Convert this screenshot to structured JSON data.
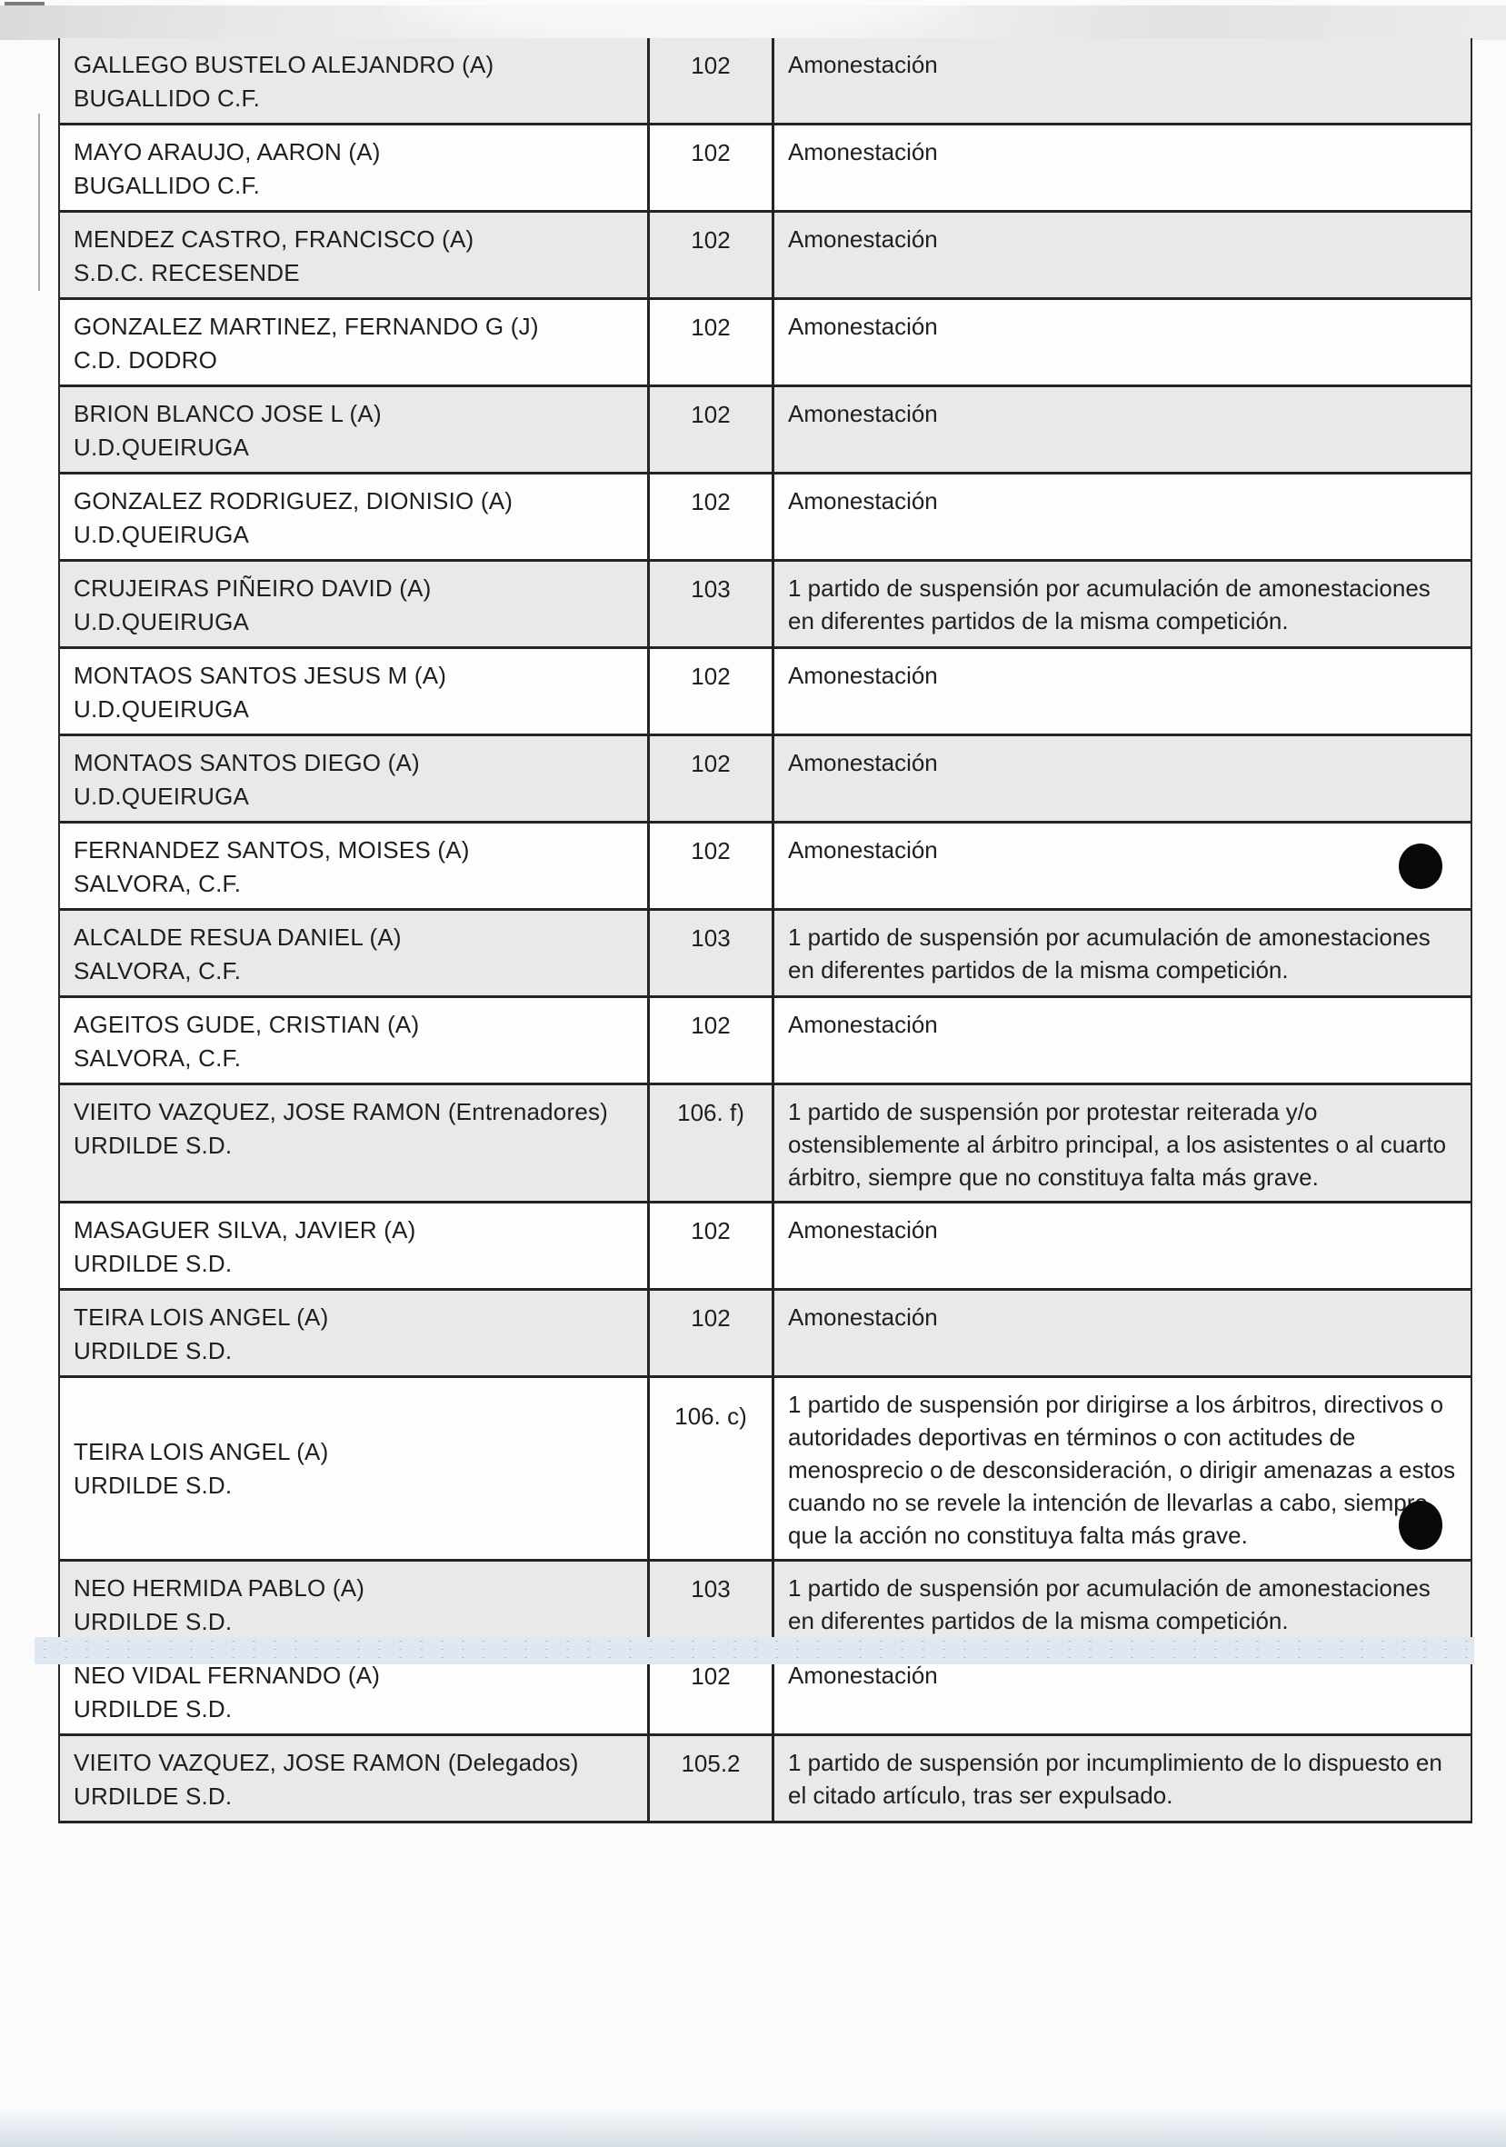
{
  "document": {
    "kind": "scanned sanctions table",
    "language": "es"
  },
  "colors": {
    "row_shaded": "#e9e9e9",
    "row_plain": "#fdfdfd",
    "border": "#242424",
    "text": "#1f1f1f",
    "scan_band_blue": "#dfe8f1",
    "redaction_dot": "#090909"
  },
  "table": {
    "columns": [
      "player_and_club",
      "article",
      "sanction"
    ],
    "rows": [
      {
        "name": "GALLEGO BUSTELO ALEJANDRO (A)",
        "club": "BUGALLIDO C.F.",
        "article": "102",
        "sanction": "Amonestación"
      },
      {
        "name": "MAYO ARAUJO, AARON (A)",
        "club": "BUGALLIDO C.F.",
        "article": "102",
        "sanction": "Amonestación"
      },
      {
        "name": "MENDEZ CASTRO, FRANCISCO (A)",
        "club": "S.D.C. RECESENDE",
        "article": "102",
        "sanction": "Amonestación"
      },
      {
        "name": "GONZALEZ MARTINEZ, FERNANDO G (J)",
        "club": "C.D. DODRO",
        "article": "102",
        "sanction": "Amonestación"
      },
      {
        "name": "BRION BLANCO JOSE L (A)",
        "club": "U.D.QUEIRUGA",
        "article": "102",
        "sanction": "Amonestación"
      },
      {
        "name": "GONZALEZ RODRIGUEZ, DIONISIO (A)",
        "club": "U.D.QUEIRUGA",
        "article": "102",
        "sanction": "Amonestación"
      },
      {
        "name": "CRUJEIRAS PIÑEIRO DAVID (A)",
        "club": "U.D.QUEIRUGA",
        "article": "103",
        "sanction": "1 partido de suspensión por acumulación de amonestaciones en diferentes partidos de la misma competición."
      },
      {
        "name": "MONTAOS SANTOS JESUS M (A)",
        "club": "U.D.QUEIRUGA",
        "article": "102",
        "sanction": "Amonestación"
      },
      {
        "name": "MONTAOS SANTOS DIEGO (A)",
        "club": "U.D.QUEIRUGA",
        "article": "102",
        "sanction": "Amonestación"
      },
      {
        "name": "FERNANDEZ SANTOS, MOISES (A)",
        "club": "SALVORA, C.F.",
        "article": "102",
        "sanction": "Amonestación",
        "redaction_dot": true
      },
      {
        "name": "ALCALDE RESUA DANIEL (A)",
        "club": "SALVORA, C.F.",
        "article": "103",
        "sanction": "1 partido de suspensión por acumulación de amonestaciones en diferentes partidos de la misma competición."
      },
      {
        "name": "AGEITOS GUDE, CRISTIAN (A)",
        "club": "SALVORA, C.F.",
        "article": "102",
        "sanction": "Amonestación"
      },
      {
        "name": "VIEITO VAZQUEZ, JOSE RAMON (Entrenadores)",
        "club": "URDILDE S.D.",
        "article": "106. f)",
        "sanction": "1 partido de suspensión por protestar reiterada y/o ostensiblemente al árbitro principal, a los asistentes o al cuarto árbitro, siempre que no constituya falta más grave."
      },
      {
        "name": "MASAGUER SILVA, JAVIER (A)",
        "club": "URDILDE S.D.",
        "article": "102",
        "sanction": "Amonestación"
      },
      {
        "name": "TEIRA LOIS ANGEL (A)",
        "club": "URDILDE S.D.",
        "article": "102",
        "sanction": "Amonestación"
      },
      {
        "name": "TEIRA LOIS ANGEL (A)",
        "club": "URDILDE S.D.",
        "article": "106. c)",
        "sanction": "1 partido de suspensión por dirigirse a los árbitros, directivos o autoridades deportivas en términos o con actitudes de menosprecio o de desconsideración, o dirigir amenazas a estos cuando no se revele la intención de llevarlas a cabo, siempre que la acción no constituya falta más grave.",
        "redaction_dot": true,
        "name_centered": true
      },
      {
        "name": "NEO HERMIDA PABLO (A)",
        "club": "URDILDE S.D.",
        "article": "103",
        "sanction": "1 partido de suspensión por acumulación de amonestaciones en diferentes partidos de la misma competición."
      },
      {
        "name": "NEO VIDAL FERNANDO (A)",
        "club": "URDILDE S.D.",
        "article": "102",
        "sanction": "Amonestación"
      },
      {
        "name": "VIEITO VAZQUEZ, JOSE RAMON (Delegados)",
        "club": "URDILDE S.D.",
        "article": "105.2",
        "sanction": "1 partido de suspensión por incumplimiento de lo dispuesto en el citado artículo, tras ser expulsado."
      }
    ]
  }
}
